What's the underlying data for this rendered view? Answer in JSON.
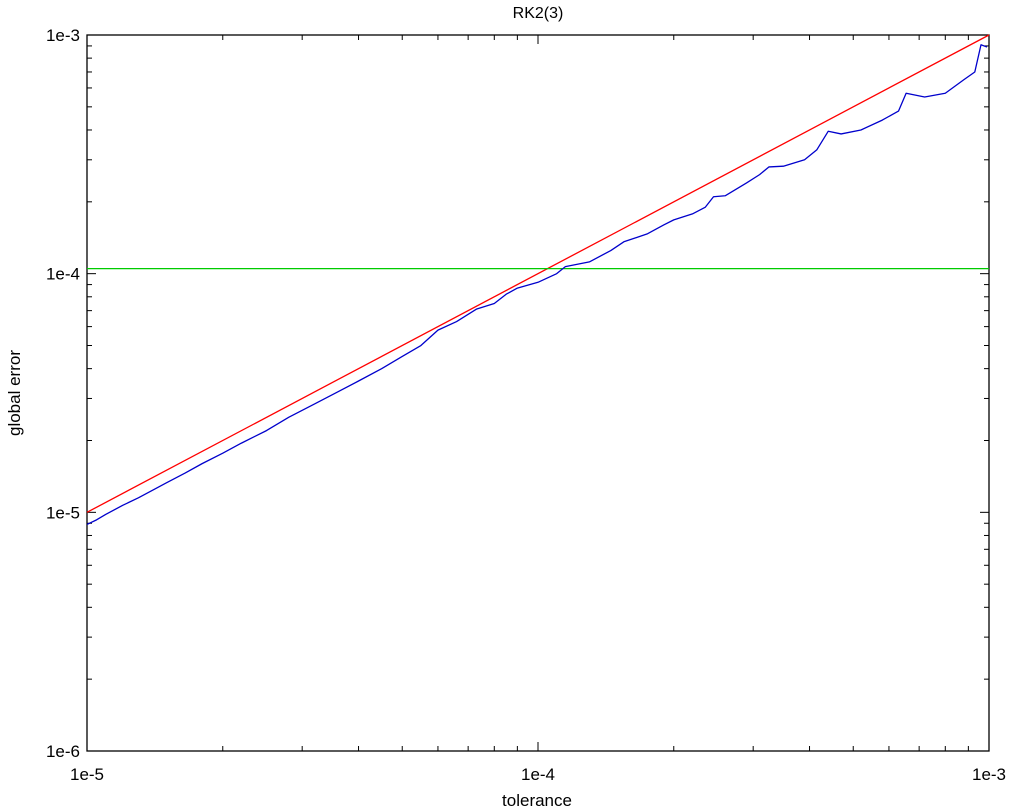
{
  "chart_data": {
    "type": "line",
    "title": "RK2(3)",
    "xlabel": "tolerance",
    "ylabel": "global error",
    "xscale": "log",
    "yscale": "log",
    "xlim": [
      1e-05,
      0.001
    ],
    "ylim": [
      1e-06,
      0.001
    ],
    "grid": false,
    "x_tick_labels": [
      "1e-5",
      "1e-4",
      "1e-3"
    ],
    "y_tick_labels": [
      "1e-6",
      "1e-5",
      "1e-4",
      "1e-3"
    ],
    "series": [
      {
        "color": "#ff0000",
        "points": [
          [
            1e-05,
            1e-05
          ],
          [
            0.001,
            0.001
          ]
        ]
      },
      {
        "color": "#00cc00",
        "points": [
          [
            1e-05,
            0.000105
          ],
          [
            0.001,
            0.000105
          ]
        ]
      },
      {
        "color": "#0000cc",
        "points": [
          [
            1e-05,
            8.9e-06
          ],
          [
            1.05e-05,
            9.3e-06
          ],
          [
            1.1e-05,
            9.8e-06
          ],
          [
            1.2e-05,
            1.07e-05
          ],
          [
            1.3e-05,
            1.15e-05
          ],
          [
            1.4e-05,
            1.24e-05
          ],
          [
            1.5e-05,
            1.33e-05
          ],
          [
            1.65e-05,
            1.46e-05
          ],
          [
            1.8e-05,
            1.6e-05
          ],
          [
            2e-05,
            1.77e-05
          ],
          [
            2.2e-05,
            1.95e-05
          ],
          [
            2.5e-05,
            2.2e-05
          ],
          [
            2.8e-05,
            2.5e-05
          ],
          [
            3.2e-05,
            2.85e-05
          ],
          [
            3.6e-05,
            3.2e-05
          ],
          [
            4e-05,
            3.55e-05
          ],
          [
            4.5e-05,
            4e-05
          ],
          [
            5e-05,
            4.5e-05
          ],
          [
            5.5e-05,
            5e-05
          ],
          [
            6e-05,
            5.8e-05
          ],
          [
            6.6e-05,
            6.3e-05
          ],
          [
            7.3e-05,
            7.1e-05
          ],
          [
            8e-05,
            7.5e-05
          ],
          [
            8.5e-05,
            8.2e-05
          ],
          [
            9e-05,
            8.7e-05
          ],
          [
            0.0001,
            9.2e-05
          ],
          [
            0.00011,
            0.0001
          ],
          [
            0.000115,
            0.000107
          ],
          [
            0.00013,
            0.000112
          ],
          [
            0.000145,
            0.000125
          ],
          [
            0.000155,
            0.000136
          ],
          [
            0.000175,
            0.000147
          ],
          [
            0.00019,
            0.00016
          ],
          [
            0.0002,
            0.000168
          ],
          [
            0.00022,
            0.000178
          ],
          [
            0.000235,
            0.00019
          ],
          [
            0.000245,
            0.00021
          ],
          [
            0.00026,
            0.000212
          ],
          [
            0.00029,
            0.00024
          ],
          [
            0.00031,
            0.00026
          ],
          [
            0.000325,
            0.00028
          ],
          [
            0.00035,
            0.000282
          ],
          [
            0.00039,
            0.0003
          ],
          [
            0.000415,
            0.00033
          ],
          [
            0.00044,
            0.000395
          ],
          [
            0.00047,
            0.000385
          ],
          [
            0.00052,
            0.0004
          ],
          [
            0.00058,
            0.00044
          ],
          [
            0.00063,
            0.00048
          ],
          [
            0.000655,
            0.00057
          ],
          [
            0.00072,
            0.00055
          ],
          [
            0.0008,
            0.00057
          ],
          [
            0.00088,
            0.00065
          ],
          [
            0.00093,
            0.0007
          ],
          [
            0.00096,
            0.00091
          ],
          [
            0.00099,
            0.00089
          ]
        ]
      }
    ]
  }
}
